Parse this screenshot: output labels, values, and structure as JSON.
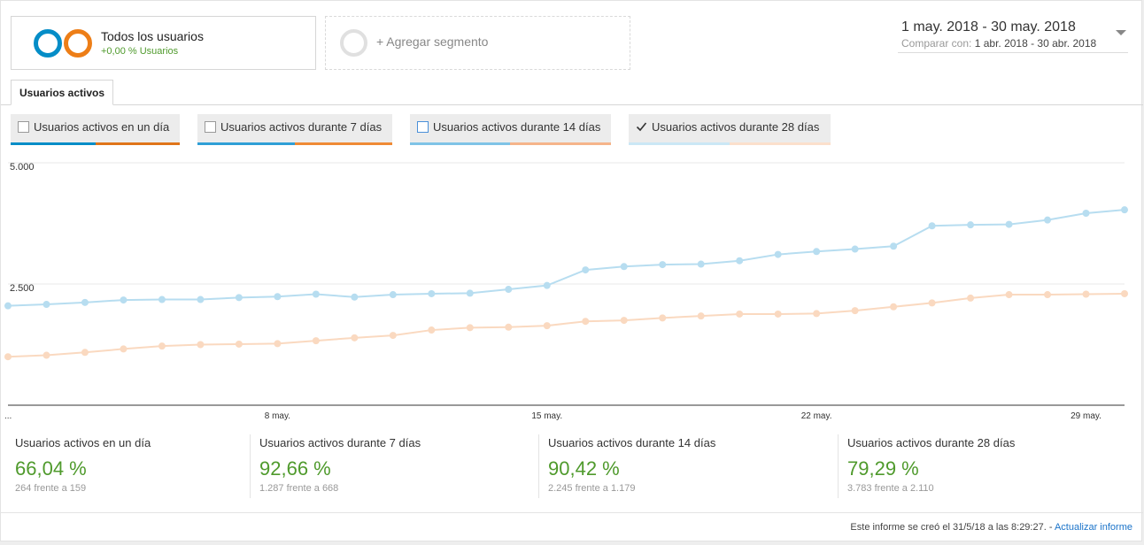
{
  "segments": {
    "active": {
      "title": "Todos los usuarios",
      "subtitle": "+0,00 % Usuarios"
    },
    "add": {
      "label": "+ Agregar segmento"
    }
  },
  "daterange": {
    "main": "1 may. 2018 - 30 may. 2018",
    "compare_label": "Comparar con:",
    "compare_value": "1 abr. 2018 - 30 abr. 2018"
  },
  "tab": {
    "label": "Usuarios activos"
  },
  "metrics": [
    {
      "label": "Usuarios activos en un día",
      "checked": false
    },
    {
      "label": "Usuarios activos durante 7 días",
      "checked": false
    },
    {
      "label": "Usuarios activos durante 14 días",
      "checked": false
    },
    {
      "label": "Usuarios activos durante 28 días",
      "checked": true
    }
  ],
  "colors": {
    "current": "#b7ddf0",
    "previous": "#fad9c0",
    "positive": "#4f9a2c",
    "link": "#1a73c9"
  },
  "chart_data": {
    "type": "line",
    "x": [
      "1 may.",
      "2 may.",
      "3 may.",
      "4 may.",
      "5 may.",
      "6 may.",
      "7 may.",
      "8 may.",
      "9 may.",
      "10 may.",
      "11 may.",
      "12 may.",
      "13 may.",
      "14 may.",
      "15 may.",
      "16 may.",
      "17 may.",
      "18 may.",
      "19 may.",
      "20 may.",
      "21 may.",
      "22 may.",
      "23 may.",
      "24 may.",
      "25 may.",
      "26 may.",
      "27 may.",
      "28 may.",
      "29 may.",
      "30 may."
    ],
    "x_tick_labels": [
      "...",
      "8 may.",
      "15 may.",
      "22 may.",
      "29 may."
    ],
    "y_tick_labels": [
      "5.000",
      "2.500"
    ],
    "ylim": [
      0,
      5000
    ],
    "series": [
      {
        "values": [
          2050,
          2080,
          2120,
          2170,
          2180,
          2180,
          2220,
          2240,
          2290,
          2230,
          2280,
          2300,
          2310,
          2390,
          2470,
          2790,
          2860,
          2900,
          2910,
          2980,
          3110,
          3170,
          3220,
          3280,
          3700,
          3720,
          3730,
          3820,
          3960,
          4030
        ]
      },
      {
        "values": [
          1000,
          1030,
          1090,
          1160,
          1220,
          1250,
          1260,
          1270,
          1330,
          1390,
          1440,
          1550,
          1600,
          1610,
          1640,
          1730,
          1750,
          1800,
          1840,
          1880,
          1880,
          1890,
          1950,
          2030,
          2110,
          2210,
          2280,
          2280,
          2290,
          2300
        ]
      }
    ]
  },
  "kpis": [
    {
      "name": "Usuarios activos en un día",
      "value": "66,04 %",
      "compare": "264 frente a 159"
    },
    {
      "name": "Usuarios activos durante 7 días",
      "value": "92,66 %",
      "compare": "1.287 frente a 668"
    },
    {
      "name": "Usuarios activos durante 14 días",
      "value": "90,42 %",
      "compare": "2.245 frente a 1.179"
    },
    {
      "name": "Usuarios activos durante 28 días",
      "value": "79,29 %",
      "compare": "3.783 frente a 2.110"
    }
  ],
  "footer": {
    "text": "Este informe se creó el 31/5/18 a las 8:29:27. -",
    "link": "Actualizar informe"
  }
}
